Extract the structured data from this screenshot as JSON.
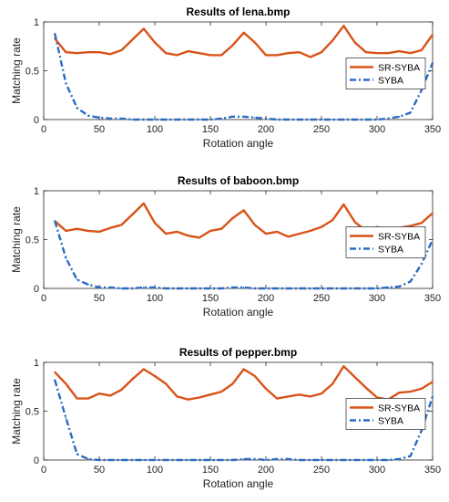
{
  "colors": {
    "sr_syba": "#d95319",
    "syba": "#2b6cc4",
    "axis": "#262626"
  },
  "chart_data": [
    {
      "type": "line",
      "title": "Results of lena.bmp",
      "xlabel": "Rotation angle",
      "ylabel": "Matching rate",
      "xlim": [
        0,
        350
      ],
      "ylim": [
        0,
        1
      ],
      "xticks": [
        0,
        50,
        100,
        150,
        200,
        250,
        300,
        350
      ],
      "yticks": [
        0,
        0.5,
        1
      ],
      "xtick_labels": [
        "0",
        "50",
        "100",
        "150",
        "200",
        "250",
        "300",
        "350"
      ],
      "ytick_labels": [
        "0",
        "0.5",
        "1"
      ],
      "legend_position": "right",
      "x": [
        10,
        20,
        30,
        40,
        50,
        60,
        70,
        80,
        90,
        100,
        110,
        120,
        130,
        140,
        150,
        160,
        170,
        180,
        190,
        200,
        210,
        220,
        230,
        240,
        250,
        260,
        270,
        280,
        290,
        300,
        310,
        320,
        330,
        340,
        350
      ],
      "series": [
        {
          "name": "SR-SYBA",
          "style": "solid",
          "values": [
            0.83,
            0.69,
            0.68,
            0.69,
            0.69,
            0.67,
            0.71,
            0.82,
            0.93,
            0.79,
            0.68,
            0.66,
            0.7,
            0.68,
            0.66,
            0.66,
            0.76,
            0.89,
            0.79,
            0.66,
            0.66,
            0.68,
            0.69,
            0.64,
            0.69,
            0.81,
            0.96,
            0.79,
            0.69,
            0.68,
            0.68,
            0.7,
            0.68,
            0.71,
            0.87
          ]
        },
        {
          "name": "SYBA",
          "style": "dashed",
          "values": [
            0.88,
            0.37,
            0.12,
            0.04,
            0.02,
            0.01,
            0.01,
            0.0,
            0.0,
            0.0,
            0.0,
            0.0,
            0.0,
            0.0,
            0.0,
            0.01,
            0.03,
            0.03,
            0.02,
            0.01,
            0.0,
            0.0,
            0.0,
            0.0,
            0.0,
            0.0,
            0.0,
            0.0,
            0.0,
            0.0,
            0.01,
            0.03,
            0.07,
            0.3,
            0.58
          ]
        }
      ]
    },
    {
      "type": "line",
      "title": "Results of baboon.bmp",
      "xlabel": "Rotation angle",
      "ylabel": "Matching rate",
      "xlim": [
        0,
        350
      ],
      "ylim": [
        0,
        1
      ],
      "xticks": [
        0,
        50,
        100,
        150,
        200,
        250,
        300,
        350
      ],
      "yticks": [
        0,
        0.5,
        1
      ],
      "xtick_labels": [
        "0",
        "50",
        "100",
        "150",
        "200",
        "250",
        "300",
        "350"
      ],
      "ytick_labels": [
        "0",
        "0.5",
        "1"
      ],
      "legend_position": "right",
      "x": [
        10,
        20,
        30,
        40,
        50,
        60,
        70,
        80,
        90,
        100,
        110,
        120,
        130,
        140,
        150,
        160,
        170,
        180,
        190,
        200,
        210,
        220,
        230,
        240,
        250,
        260,
        270,
        280,
        290,
        300,
        310,
        320,
        330,
        340,
        350
      ],
      "series": [
        {
          "name": "SR-SYBA",
          "style": "solid",
          "values": [
            0.69,
            0.59,
            0.61,
            0.59,
            0.58,
            0.62,
            0.65,
            0.76,
            0.87,
            0.67,
            0.56,
            0.58,
            0.54,
            0.52,
            0.59,
            0.61,
            0.72,
            0.8,
            0.65,
            0.56,
            0.58,
            0.53,
            0.56,
            0.59,
            0.63,
            0.7,
            0.86,
            0.68,
            0.59,
            0.63,
            0.6,
            0.62,
            0.64,
            0.67,
            0.77
          ]
        },
        {
          "name": "SYBA",
          "style": "dashed",
          "values": [
            0.69,
            0.31,
            0.09,
            0.04,
            0.01,
            0.01,
            0.0,
            0.0,
            0.01,
            0.01,
            0.0,
            0.0,
            0.0,
            0.0,
            0.0,
            0.0,
            0.01,
            0.01,
            0.0,
            0.0,
            0.0,
            0.0,
            0.0,
            0.0,
            0.0,
            0.0,
            0.0,
            0.0,
            0.0,
            0.0,
            0.01,
            0.02,
            0.07,
            0.25,
            0.5
          ]
        }
      ]
    },
    {
      "type": "line",
      "title": "Results of pepper.bmp",
      "xlabel": "Rotation angle",
      "ylabel": "Matching rate",
      "xlim": [
        0,
        350
      ],
      "ylim": [
        0,
        1
      ],
      "xticks": [
        0,
        50,
        100,
        150,
        200,
        250,
        300,
        350
      ],
      "yticks": [
        0,
        0.5,
        1
      ],
      "xtick_labels": [
        "0",
        "50",
        "100",
        "150",
        "200",
        "250",
        "300",
        "350"
      ],
      "ytick_labels": [
        "0",
        "0.5",
        "1"
      ],
      "legend_position": "right",
      "x": [
        10,
        20,
        30,
        40,
        50,
        60,
        70,
        80,
        90,
        100,
        110,
        120,
        130,
        140,
        150,
        160,
        170,
        180,
        190,
        200,
        210,
        220,
        230,
        240,
        250,
        260,
        270,
        280,
        290,
        300,
        310,
        320,
        330,
        340,
        350
      ],
      "series": [
        {
          "name": "SR-SYBA",
          "style": "solid",
          "values": [
            0.9,
            0.78,
            0.63,
            0.63,
            0.68,
            0.66,
            0.72,
            0.83,
            0.93,
            0.86,
            0.78,
            0.65,
            0.62,
            0.64,
            0.67,
            0.7,
            0.78,
            0.93,
            0.86,
            0.73,
            0.63,
            0.65,
            0.67,
            0.65,
            0.68,
            0.78,
            0.96,
            0.85,
            0.74,
            0.64,
            0.62,
            0.69,
            0.7,
            0.73,
            0.8
          ]
        },
        {
          "name": "SYBA",
          "style": "dashed",
          "values": [
            0.82,
            0.43,
            0.06,
            0.01,
            0.0,
            0.0,
            0.0,
            0.0,
            0.0,
            0.0,
            0.0,
            0.0,
            0.0,
            0.0,
            0.0,
            0.0,
            0.0,
            0.01,
            0.01,
            0.0,
            0.01,
            0.01,
            0.0,
            0.0,
            0.0,
            0.0,
            0.0,
            0.0,
            0.0,
            0.0,
            0.0,
            0.01,
            0.04,
            0.3,
            0.65
          ]
        }
      ]
    }
  ]
}
